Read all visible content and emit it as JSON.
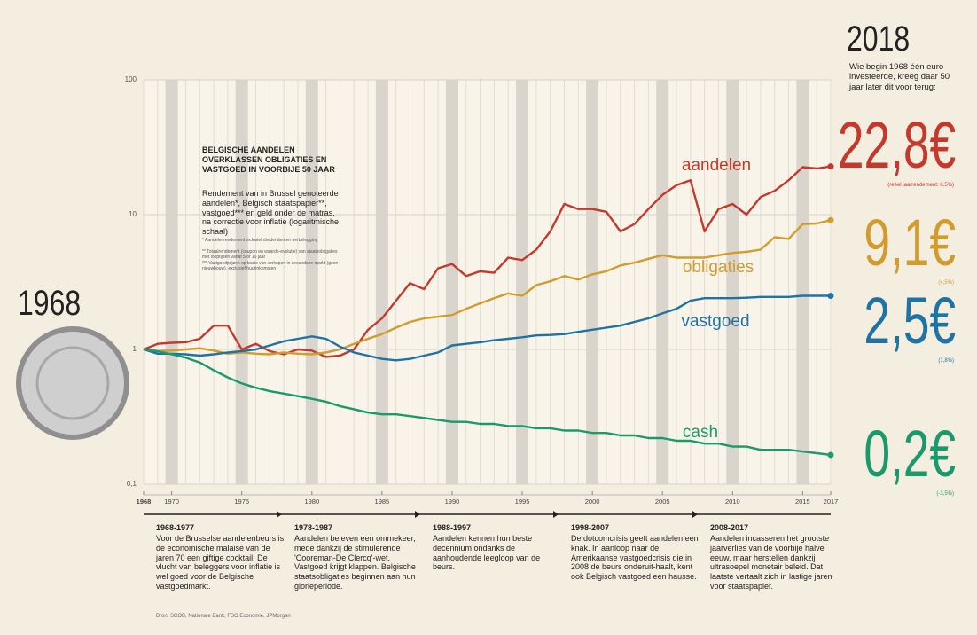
{
  "chart_data": {
    "type": "line",
    "log_scale": true,
    "grid": true,
    "box_title": "BELGISCHE AANDELEN OVERKLASSEN OBLIGATIES EN VASTGOED IN VOORBIJE 50 JAAR",
    "box_subtitle": "Rendement van in Brussel genoteerde aandelen*, Belgisch staatspapier**, vastgoed*** en geld onder de matras, na correctie voor inflatie (logaritmische schaal)",
    "box_notes": [
      "* Aandelenrendement inclusief dividenden en herbelegging",
      "** Totaalrendement (coupon en waarde-evolutie) van staatsobligaties met looptijden vanaf 5 of 10 jaar",
      "*** Vastgoedprijzen op basis van verkopen in secundaire markt (geen nieuwbouw), exclusief huurinkomsten"
    ],
    "start_label": "1968",
    "end_title": "2018",
    "end_subtitle": "Wie begin 1968 één euro investeerde, kreeg daar 50 jaar later dit voor terug:",
    "x": [
      1968,
      1969,
      1970,
      1971,
      1972,
      1973,
      1974,
      1975,
      1976,
      1977,
      1978,
      1979,
      1980,
      1981,
      1982,
      1983,
      1984,
      1985,
      1986,
      1987,
      1988,
      1989,
      1990,
      1991,
      1992,
      1993,
      1994,
      1995,
      1996,
      1997,
      1998,
      1999,
      2000,
      2001,
      2002,
      2003,
      2004,
      2005,
      2006,
      2007,
      2008,
      2009,
      2010,
      2011,
      2012,
      2013,
      2014,
      2015,
      2016,
      2017
    ],
    "xlim": [
      1968,
      2017
    ],
    "xticks": [
      1968,
      1970,
      1975,
      1980,
      1985,
      1990,
      1995,
      2000,
      2005,
      2010,
      2015,
      2017
    ],
    "ylim": [
      0.1,
      100
    ],
    "yticks": [
      {
        "value": 0.1,
        "label": "0,1"
      },
      1,
      10,
      100
    ],
    "series": [
      {
        "name": "aandelen",
        "color": "#c4392c",
        "total_label": "22,8€",
        "return_label": "(reëel jaarrendement: 6,5%)",
        "values": [
          1,
          1.1,
          1.12,
          1.13,
          1.2,
          1.5,
          1.5,
          1.0,
          1.1,
          0.97,
          0.92,
          1.0,
          0.98,
          0.88,
          0.9,
          1.0,
          1.4,
          1.7,
          2.3,
          3.1,
          2.8,
          4.0,
          4.3,
          3.5,
          3.8,
          3.7,
          4.8,
          4.6,
          5.5,
          7.5,
          12,
          11,
          11,
          10.5,
          7.5,
          8.5,
          11,
          14,
          16.5,
          18,
          7.5,
          11,
          12,
          10,
          13.5,
          15,
          18,
          22.5,
          22,
          22.8
        ]
      },
      {
        "name": "obligaties",
        "color": "#d29b2e",
        "total_label": "9,1€",
        "return_label": "(4,5%)",
        "values": [
          1,
          0.97,
          0.98,
          1.0,
          1.02,
          0.98,
          0.93,
          0.95,
          0.93,
          0.92,
          0.95,
          0.93,
          0.92,
          0.95,
          1.0,
          1.1,
          1.2,
          1.3,
          1.45,
          1.6,
          1.7,
          1.75,
          1.8,
          2.0,
          2.2,
          2.4,
          2.6,
          2.5,
          3.0,
          3.2,
          3.5,
          3.3,
          3.6,
          3.8,
          4.2,
          4.4,
          4.7,
          5.0,
          4.8,
          4.8,
          4.8,
          5.0,
          5.2,
          5.3,
          5.5,
          6.8,
          6.6,
          8.5,
          8.6,
          9.1
        ]
      },
      {
        "name": "vastgoed",
        "color": "#1f73a3",
        "total_label": "2,5€",
        "return_label": "(1,8%)",
        "values": [
          1,
          0.93,
          0.93,
          0.92,
          0.9,
          0.92,
          0.95,
          0.97,
          1.0,
          1.07,
          1.15,
          1.2,
          1.25,
          1.2,
          1.05,
          0.95,
          0.9,
          0.85,
          0.83,
          0.85,
          0.9,
          0.95,
          1.07,
          1.1,
          1.13,
          1.17,
          1.2,
          1.23,
          1.27,
          1.28,
          1.3,
          1.35,
          1.4,
          1.45,
          1.5,
          1.6,
          1.7,
          1.85,
          2.0,
          2.3,
          2.4,
          2.4,
          2.4,
          2.42,
          2.45,
          2.45,
          2.45,
          2.5,
          2.5,
          2.5
        ]
      },
      {
        "name": "cash",
        "color": "#1a9a6c",
        "total_label": "0,2€",
        "return_label": "(-3,5%)",
        "values": [
          1,
          0.97,
          0.92,
          0.87,
          0.8,
          0.7,
          0.62,
          0.56,
          0.52,
          0.49,
          0.47,
          0.45,
          0.43,
          0.41,
          0.38,
          0.36,
          0.34,
          0.33,
          0.33,
          0.32,
          0.31,
          0.3,
          0.29,
          0.29,
          0.28,
          0.28,
          0.27,
          0.27,
          0.26,
          0.26,
          0.25,
          0.25,
          0.24,
          0.24,
          0.23,
          0.23,
          0.22,
          0.22,
          0.21,
          0.21,
          0.2,
          0.2,
          0.19,
          0.19,
          0.18,
          0.18,
          0.18,
          0.175,
          0.17,
          0.165
        ]
      }
    ],
    "periods": [
      {
        "title": "1968-1977",
        "text": "Voor de Brusselse aandelenbeurs is de economische malaise van de jaren 70 een giftige cocktail. De vlucht van beleggers voor inflatie is wel goed voor de Belgische vastgoedmarkt."
      },
      {
        "title": "1978-1987",
        "text": "Aandelen beleven een ommekeer, mede dankzij de stimulerende 'Cooreman-De Clercq'-wet. Vastgoed krijgt klappen. Belgische staatsobligaties beginnen aan hun glorieperiode."
      },
      {
        "title": "1988-1997",
        "text": "Aandelen kennen hun beste decennium ondanks de aanhoudende leegloop van de beurs."
      },
      {
        "title": "1998-2007",
        "text": "De dotcomcrisis geeft aandelen een knak. In aanloop naar de Amerikaanse vastgoedcrisis die in 2008 de beurs onderuit-haalt, kent ook Belgisch vastgoed een hausse."
      },
      {
        "title": "2008-2017",
        "text": "Aandelen incasseren het grootste jaarverlies van de voorbije halve eeuw, maar herstellen dankzij ultrasoepel monetair beleid. Dat laatste vertaalt zich in lastige jaren voor staatspapier."
      }
    ],
    "source": "Bron: SCOB, Nationale Bank, FSO Economie, JPMorgan"
  }
}
